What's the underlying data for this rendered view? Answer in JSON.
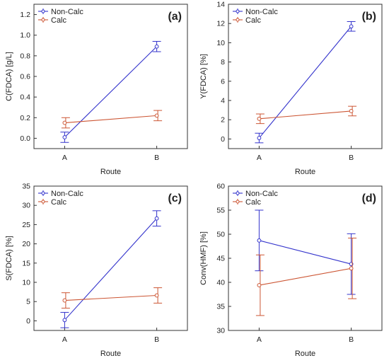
{
  "chart_data": [
    {
      "type": "line",
      "panel_label": "(a)",
      "categories": [
        "A",
        "B"
      ],
      "xlabel": "Route",
      "ylabel": "C(FDCA) [g/L]",
      "ylim": [
        -0.1,
        1.3
      ],
      "yticks": [
        0.0,
        0.2,
        0.4,
        0.6,
        0.8,
        1.0,
        1.2
      ],
      "ytick_labels": [
        "0.0",
        "0.2",
        "0.4",
        "0.6",
        "0.8",
        "1.0",
        "1.2"
      ],
      "grid": false,
      "legend_position": "top-left",
      "series": [
        {
          "name": "Non-Calc",
          "color": "#3333cc",
          "values": [
            0.01,
            0.89
          ],
          "errors": [
            0.05,
            0.05
          ]
        },
        {
          "name": "Calc",
          "color": "#cc5533",
          "values": [
            0.15,
            0.22
          ],
          "errors": [
            0.05,
            0.05
          ]
        }
      ]
    },
    {
      "type": "line",
      "panel_label": "(b)",
      "categories": [
        "A",
        "B"
      ],
      "xlabel": "Route",
      "ylabel": "Y(FDCA) [%]",
      "ylim": [
        -1,
        14
      ],
      "yticks": [
        0,
        2,
        4,
        6,
        8,
        10,
        12,
        14
      ],
      "ytick_labels": [
        "0",
        "2",
        "4",
        "6",
        "8",
        "10",
        "12",
        "14"
      ],
      "grid": false,
      "legend_position": "top-left",
      "series": [
        {
          "name": "Non-Calc",
          "color": "#3333cc",
          "values": [
            0.1,
            11.7
          ],
          "errors": [
            0.5,
            0.5
          ]
        },
        {
          "name": "Calc",
          "color": "#cc5533",
          "values": [
            2.1,
            2.9
          ],
          "errors": [
            0.5,
            0.5
          ]
        }
      ]
    },
    {
      "type": "line",
      "panel_label": "(c)",
      "categories": [
        "A",
        "B"
      ],
      "xlabel": "Route",
      "ylabel": "S(FDCA) [%]",
      "ylim": [
        -2.5,
        35
      ],
      "yticks": [
        0,
        5,
        10,
        15,
        20,
        25,
        30,
        35
      ],
      "ytick_labels": [
        "0",
        "5",
        "10",
        "15",
        "20",
        "25",
        "30",
        "35"
      ],
      "grid": false,
      "legend_position": "top-left",
      "series": [
        {
          "name": "Non-Calc",
          "color": "#3333cc",
          "values": [
            0.2,
            26.6
          ],
          "errors": [
            2.0,
            2.0
          ]
        },
        {
          "name": "Calc",
          "color": "#cc5533",
          "values": [
            5.3,
            6.6
          ],
          "errors": [
            2.0,
            2.0
          ]
        }
      ]
    },
    {
      "type": "line",
      "panel_label": "(d)",
      "categories": [
        "A",
        "B"
      ],
      "xlabel": "Route",
      "ylabel": "Conv(HMF) [%]",
      "ylim": [
        30,
        60
      ],
      "yticks": [
        30,
        35,
        40,
        45,
        50,
        55,
        60
      ],
      "ytick_labels": [
        "30",
        "35",
        "40",
        "45",
        "50",
        "55",
        "60"
      ],
      "grid": false,
      "legend_position": "top-left",
      "series": [
        {
          "name": "Non-Calc",
          "color": "#3333cc",
          "values": [
            48.7,
            43.8
          ],
          "errors": [
            6.3,
            6.3
          ]
        },
        {
          "name": "Calc",
          "color": "#cc5533",
          "values": [
            39.4,
            42.9
          ],
          "errors": [
            6.3,
            6.3
          ]
        }
      ]
    }
  ]
}
